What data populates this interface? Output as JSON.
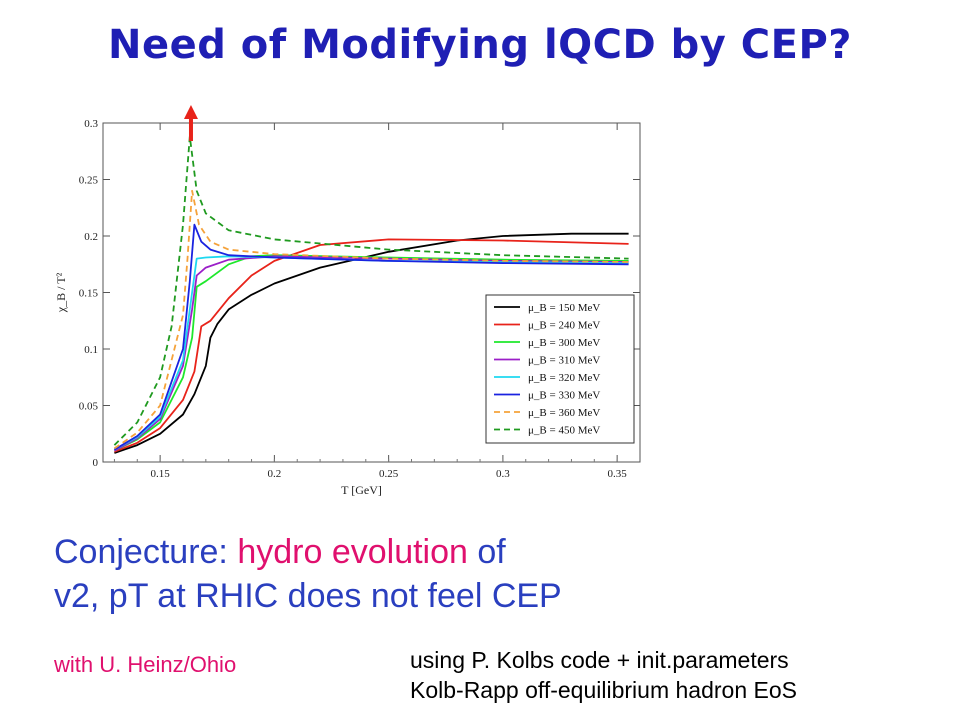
{
  "slide": {
    "title": "Need of Modifying lQCD by CEP?",
    "conjecture": {
      "prefix": "Conjecture: ",
      "highlight": "hydro evolution",
      "suffix": " of",
      "line2": "v2, pT at RHIC does not feel CEP"
    },
    "with_note": "with U. Heinz/Ohio",
    "using_line1": "using P. Kolbs code + init.parameters",
    "using_line2": "Kolb-Rapp off-equilibrium hadron EoS",
    "colors": {
      "title": "#1f1fb4",
      "text_blue": "#2a3fbf",
      "highlight": "#e0106e",
      "arrow": "#e8231a"
    }
  },
  "chart_data": {
    "type": "line",
    "xlabel": "T [GeV]",
    "ylabel": "χ_B / T²",
    "xlim": [
      0.125,
      0.36
    ],
    "ylim": [
      0,
      0.3
    ],
    "xticks": [
      0.15,
      0.2,
      0.25,
      0.3,
      0.35
    ],
    "yticks": [
      0,
      0.05,
      0.1,
      0.15,
      0.2,
      0.25,
      0.3
    ],
    "legend_position": "bottom-right",
    "grid": false,
    "annotation": "red arrow pointing up at the peak near T = 0.163 GeV",
    "series": [
      {
        "name": "μ_B = 150 MeV",
        "color": "#000000",
        "dash": false,
        "points": [
          [
            0.13,
            0.008
          ],
          [
            0.14,
            0.015
          ],
          [
            0.15,
            0.025
          ],
          [
            0.16,
            0.042
          ],
          [
            0.165,
            0.06
          ],
          [
            0.17,
            0.085
          ],
          [
            0.172,
            0.11
          ],
          [
            0.175,
            0.122
          ],
          [
            0.18,
            0.135
          ],
          [
            0.19,
            0.148
          ],
          [
            0.2,
            0.158
          ],
          [
            0.22,
            0.172
          ],
          [
            0.25,
            0.186
          ],
          [
            0.28,
            0.196
          ],
          [
            0.3,
            0.2
          ],
          [
            0.33,
            0.202
          ],
          [
            0.355,
            0.202
          ]
        ]
      },
      {
        "name": "μ_B = 240 MeV",
        "color": "#e8231a",
        "dash": false,
        "points": [
          [
            0.13,
            0.009
          ],
          [
            0.14,
            0.017
          ],
          [
            0.15,
            0.03
          ],
          [
            0.16,
            0.055
          ],
          [
            0.165,
            0.08
          ],
          [
            0.168,
            0.12
          ],
          [
            0.172,
            0.125
          ],
          [
            0.18,
            0.145
          ],
          [
            0.19,
            0.165
          ],
          [
            0.2,
            0.178
          ],
          [
            0.22,
            0.192
          ],
          [
            0.25,
            0.197
          ],
          [
            0.3,
            0.196
          ],
          [
            0.355,
            0.193
          ]
        ]
      },
      {
        "name": "μ_B = 300 MeV",
        "color": "#1ee82c",
        "dash": false,
        "points": [
          [
            0.13,
            0.01
          ],
          [
            0.14,
            0.02
          ],
          [
            0.15,
            0.035
          ],
          [
            0.16,
            0.075
          ],
          [
            0.164,
            0.11
          ],
          [
            0.166,
            0.155
          ],
          [
            0.17,
            0.16
          ],
          [
            0.18,
            0.175
          ],
          [
            0.19,
            0.182
          ],
          [
            0.2,
            0.183
          ],
          [
            0.25,
            0.181
          ],
          [
            0.3,
            0.179
          ],
          [
            0.355,
            0.178
          ]
        ]
      },
      {
        "name": "μ_B = 310 MeV",
        "color": "#9b1fc8",
        "dash": false,
        "points": [
          [
            0.13,
            0.01
          ],
          [
            0.14,
            0.021
          ],
          [
            0.15,
            0.038
          ],
          [
            0.16,
            0.085
          ],
          [
            0.164,
            0.135
          ],
          [
            0.166,
            0.165
          ],
          [
            0.17,
            0.172
          ],
          [
            0.18,
            0.179
          ],
          [
            0.2,
            0.182
          ],
          [
            0.25,
            0.18
          ],
          [
            0.3,
            0.178
          ],
          [
            0.355,
            0.177
          ]
        ]
      },
      {
        "name": "μ_B = 320 MeV",
        "color": "#1ed8f0",
        "dash": false,
        "points": [
          [
            0.13,
            0.011
          ],
          [
            0.14,
            0.022
          ],
          [
            0.15,
            0.04
          ],
          [
            0.16,
            0.09
          ],
          [
            0.164,
            0.15
          ],
          [
            0.166,
            0.18
          ],
          [
            0.17,
            0.181
          ],
          [
            0.18,
            0.182
          ],
          [
            0.2,
            0.181
          ],
          [
            0.25,
            0.178
          ],
          [
            0.3,
            0.177
          ],
          [
            0.355,
            0.176
          ]
        ]
      },
      {
        "name": "μ_B = 330 MeV",
        "color": "#1a23e0",
        "dash": false,
        "points": [
          [
            0.13,
            0.011
          ],
          [
            0.14,
            0.023
          ],
          [
            0.15,
            0.042
          ],
          [
            0.16,
            0.1
          ],
          [
            0.163,
            0.16
          ],
          [
            0.165,
            0.21
          ],
          [
            0.168,
            0.195
          ],
          [
            0.172,
            0.188
          ],
          [
            0.18,
            0.183
          ],
          [
            0.2,
            0.181
          ],
          [
            0.25,
            0.178
          ],
          [
            0.3,
            0.176
          ],
          [
            0.355,
            0.175
          ]
        ]
      },
      {
        "name": "μ_B = 360 MeV",
        "color": "#f5a23a",
        "dash": true,
        "points": [
          [
            0.13,
            0.012
          ],
          [
            0.14,
            0.026
          ],
          [
            0.15,
            0.05
          ],
          [
            0.16,
            0.13
          ],
          [
            0.162,
            0.18
          ],
          [
            0.164,
            0.24
          ],
          [
            0.167,
            0.21
          ],
          [
            0.172,
            0.195
          ],
          [
            0.18,
            0.188
          ],
          [
            0.2,
            0.184
          ],
          [
            0.25,
            0.18
          ],
          [
            0.3,
            0.178
          ],
          [
            0.355,
            0.177
          ]
        ]
      },
      {
        "name": "μ_B = 450 MeV",
        "color": "#1f9a1f",
        "dash": true,
        "points": [
          [
            0.13,
            0.015
          ],
          [
            0.14,
            0.035
          ],
          [
            0.15,
            0.075
          ],
          [
            0.155,
            0.12
          ],
          [
            0.16,
            0.21
          ],
          [
            0.163,
            0.288
          ],
          [
            0.166,
            0.24
          ],
          [
            0.17,
            0.22
          ],
          [
            0.18,
            0.205
          ],
          [
            0.2,
            0.197
          ],
          [
            0.25,
            0.188
          ],
          [
            0.3,
            0.183
          ],
          [
            0.355,
            0.18
          ]
        ]
      }
    ]
  }
}
